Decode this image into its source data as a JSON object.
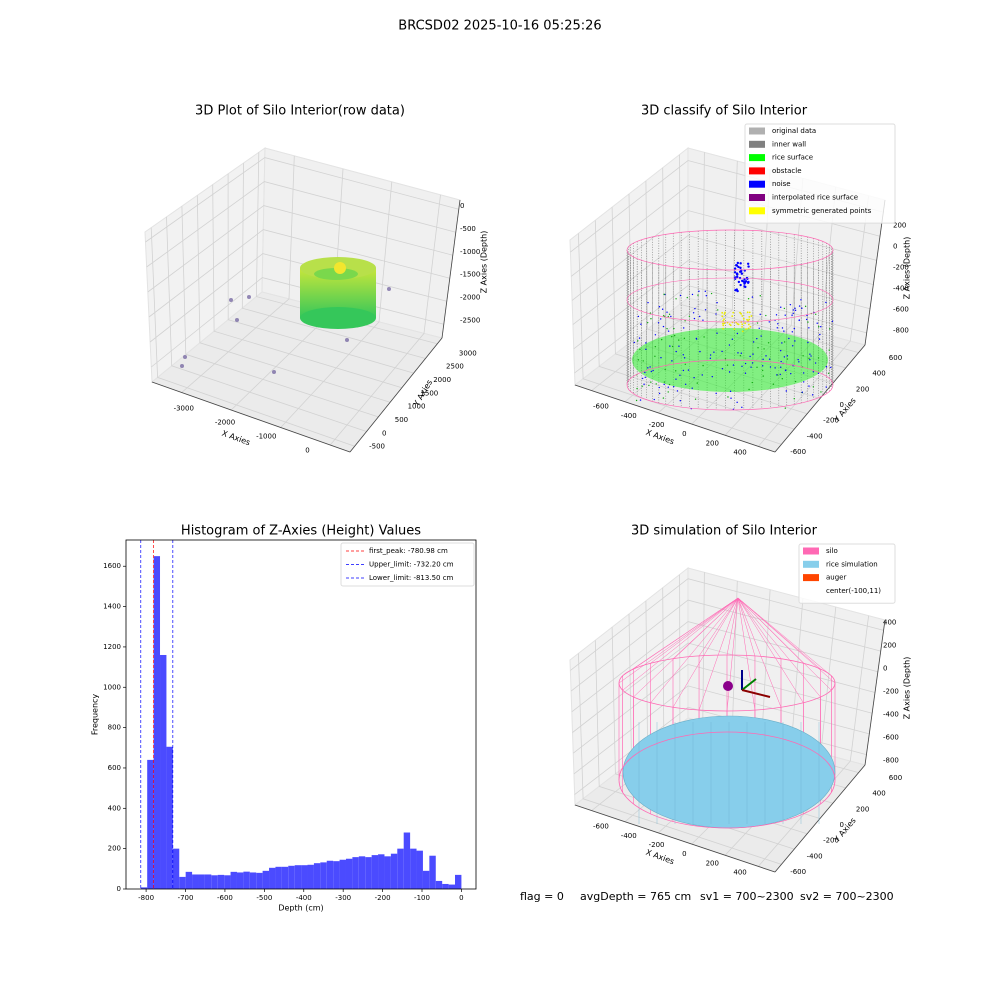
{
  "title": "BRCSD02 2025-10-16 05:25:26",
  "chart_data": [
    {
      "type": "scatter3d",
      "title": "3D Plot of Silo Interior(row data)",
      "xlabel": "X Axies",
      "ylabel": "Y Axies",
      "zlabel": "Z Axies (Depth)",
      "xlim": [
        -3600,
        400
      ],
      "xticks": [
        -3000,
        -2000,
        -1000,
        0
      ],
      "ylim": [
        -700,
        3200
      ],
      "yticks": [
        -500,
        0,
        500,
        1000,
        1500,
        2000,
        2500,
        3000
      ],
      "zlim": [
        -2800,
        200
      ],
      "zticks": [
        0,
        -500,
        -1000,
        -1500,
        -2000,
        -2500
      ]
    },
    {
      "type": "scatter3d",
      "title": "3D classify of Silo Interior",
      "xlabel": "X Axies",
      "ylabel": "Y Axies",
      "zlabel": "Z Axies (Depth)",
      "xlim": [
        -700,
        500
      ],
      "xticks": [
        -600,
        -400,
        -200,
        0,
        200,
        400
      ],
      "ylim": [
        -700,
        700
      ],
      "yticks": [
        -600,
        -400,
        -200,
        0,
        200,
        400,
        600
      ],
      "zlim": [
        -900,
        300
      ],
      "zticks": [
        200,
        0,
        -200,
        -400,
        -600,
        -800
      ],
      "legend": [
        {
          "name": "original data",
          "color": "#b0b0b0"
        },
        {
          "name": "inner wall",
          "color": "#808080"
        },
        {
          "name": "rice surface",
          "color": "#00ff00"
        },
        {
          "name": "obstacle",
          "color": "#ff0000"
        },
        {
          "name": "noise",
          "color": "#0000ff"
        },
        {
          "name": "interpolated rice surface",
          "color": "#800080"
        },
        {
          "name": "symmetric generated points",
          "color": "#ffff00"
        }
      ]
    },
    {
      "type": "histogram",
      "title": "Histogram of Z-Axies (Height) Values",
      "xlabel": "Depth (cm)",
      "ylabel": "Frequency",
      "color": "#4b4bff",
      "xlim": [
        -851,
        37
      ],
      "xticks": [
        -800,
        -700,
        -600,
        -500,
        -400,
        -300,
        -200,
        -100,
        0
      ],
      "ylim": [
        0,
        1730
      ],
      "yticks": [
        0,
        200,
        400,
        600,
        800,
        1000,
        1200,
        1400,
        1600
      ],
      "bins": [
        -813.5,
        -797.23,
        -780.96,
        -764.69,
        -748.42,
        -732.15,
        -715.88,
        -699.61,
        -683.34,
        -667.07,
        -650.8,
        -634.53,
        -618.26,
        -601.99,
        -585.72,
        -569.45,
        -553.18,
        -536.91,
        -520.64,
        -504.37,
        -488.1,
        -471.83,
        -455.56,
        -439.29,
        -423.02,
        -406.75,
        -390.48,
        -374.21,
        -357.94,
        -341.67,
        -325.4,
        -309.13,
        -292.86,
        -276.59,
        -260.32,
        -244.05,
        -227.78,
        -211.51,
        -195.24,
        -178.97,
        -162.7,
        -146.43,
        -130.16,
        -113.89,
        -97.62,
        -81.35,
        -65.08,
        -48.81,
        -32.54,
        -16.27,
        0
      ],
      "counts": [
        8,
        640,
        1650,
        1160,
        705,
        200,
        60,
        85,
        72,
        72,
        72,
        68,
        70,
        68,
        85,
        82,
        86,
        82,
        80,
        90,
        105,
        110,
        110,
        115,
        118,
        118,
        120,
        128,
        132,
        140,
        138,
        145,
        150,
        158,
        162,
        158,
        168,
        172,
        162,
        175,
        200,
        280,
        200,
        190,
        90,
        165,
        40,
        25,
        22,
        70
      ],
      "reference_lines": [
        {
          "label": "first_peak: -780.98 cm",
          "value": -780.98,
          "color": "#ff0000"
        },
        {
          "label": "Upper_limit: -732.20 cm",
          "value": -732.2,
          "color": "#0000ff"
        },
        {
          "label": "Lower_limit: -813.50 cm",
          "value": -813.5,
          "color": "#0000ff"
        }
      ]
    },
    {
      "type": "surface3d",
      "title": "3D simulation of Silo Interior",
      "xlabel": "X Axies",
      "ylabel": "Y Axies",
      "zlabel": "Z Axies (Depth)",
      "xlim": [
        -700,
        500
      ],
      "xticks": [
        -600,
        -400,
        -200,
        0,
        200,
        400
      ],
      "ylim": [
        -700,
        700
      ],
      "yticks": [
        -600,
        -400,
        -200,
        0,
        200,
        400,
        600
      ],
      "zlim": [
        -900,
        500
      ],
      "zticks": [
        400,
        200,
        0,
        -200,
        -400,
        -600,
        -800
      ],
      "legend": [
        {
          "name": "silo",
          "color": "#ff69b4"
        },
        {
          "name": "rice simulation",
          "color": "#87ceeb"
        },
        {
          "name": "auger",
          "color": "#ff4500"
        },
        {
          "name": "center(-100,11)"
        }
      ]
    }
  ],
  "annotations": [
    "flag = 0",
    "avgDepth = 765 cm",
    "sv1 = 700~2300",
    "sv2 = 700~2300"
  ]
}
